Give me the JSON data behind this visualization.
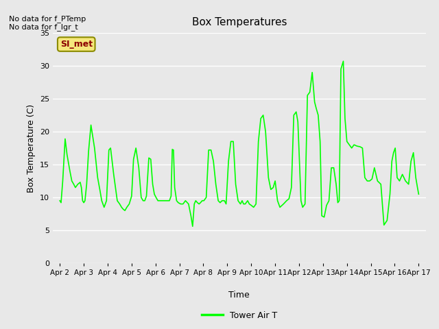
{
  "title": "Box Temperatures",
  "ylabel": "Box Temperature (C)",
  "xlabel": "Time",
  "no_data_text1": "No data for f_PTemp",
  "no_data_text2": "No data for f_lgr_t",
  "si_met_label": "SI_met",
  "legend_label": "Tower Air T",
  "line_color": "#00FF00",
  "fig_bg": "#E8E8E8",
  "plot_bg": "#E8E8E8",
  "ylim": [
    0,
    35
  ],
  "yticks": [
    0,
    5,
    10,
    15,
    20,
    25,
    30,
    35
  ],
  "x_labels": [
    "Apr 2",
    "Apr 3",
    "Apr 4",
    "Apr 5",
    "Apr 6",
    "Apr 7",
    "Apr 8",
    "Apr 9",
    "Apr 10",
    "Apr 11",
    "Apr 12",
    "Apr 13",
    "Apr 14",
    "Apr 15",
    "Apr 16",
    "Apr 17"
  ],
  "x_positions": [
    0,
    1,
    2,
    3,
    4,
    5,
    6,
    7,
    8,
    9,
    10,
    11,
    12,
    13,
    14,
    15
  ],
  "time_data": [
    0.0,
    0.05,
    0.12,
    0.22,
    0.3,
    0.42,
    0.5,
    0.58,
    0.65,
    0.75,
    0.85,
    0.9,
    0.95,
    1.0,
    1.05,
    1.12,
    1.2,
    1.3,
    1.45,
    1.58,
    1.68,
    1.75,
    1.8,
    1.85,
    1.9,
    1.95,
    2.05,
    2.12,
    2.25,
    2.4,
    2.5,
    2.58,
    2.65,
    2.72,
    2.8,
    2.9,
    3.0,
    3.08,
    3.18,
    3.3,
    3.4,
    3.48,
    3.55,
    3.62,
    3.72,
    3.8,
    3.88,
    3.95,
    4.02,
    4.1,
    4.18,
    4.28,
    4.38,
    4.48,
    4.58,
    4.65,
    4.7,
    4.75,
    4.8,
    4.88,
    4.95,
    5.05,
    5.15,
    5.25,
    5.38,
    5.48,
    5.55,
    5.62,
    5.68,
    5.75,
    5.82,
    5.88,
    5.95,
    6.02,
    6.12,
    6.22,
    6.32,
    6.42,
    6.52,
    6.62,
    6.7,
    6.78,
    6.88,
    6.95,
    7.05,
    7.15,
    7.25,
    7.35,
    7.45,
    7.55,
    7.62,
    7.68,
    7.75,
    7.85,
    7.92,
    8.0,
    8.1,
    8.2,
    8.3,
    8.4,
    8.5,
    8.6,
    8.72,
    8.82,
    8.92,
    9.0,
    9.1,
    9.2,
    9.35,
    9.48,
    9.58,
    9.68,
    9.78,
    9.88,
    9.95,
    10.0,
    10.08,
    10.15,
    10.25,
    10.35,
    10.45,
    10.55,
    10.65,
    10.72,
    10.8,
    10.88,
    10.95,
    11.05,
    11.15,
    11.25,
    11.35,
    11.45,
    11.55,
    11.62,
    11.68,
    11.75,
    11.85,
    11.92,
    12.0,
    12.1,
    12.2,
    12.3,
    12.42,
    12.55,
    12.65,
    12.75,
    12.85,
    12.95,
    13.05,
    13.15,
    13.28,
    13.42,
    13.55,
    13.68,
    13.8,
    13.88,
    13.95,
    14.02,
    14.1,
    14.2,
    14.32,
    14.45,
    14.58,
    14.68,
    14.78,
    14.88,
    14.95,
    15.0
  ],
  "temp_data": [
    9.5,
    9.2,
    12.5,
    18.9,
    16.5,
    14.0,
    12.5,
    12.0,
    11.5,
    12.0,
    12.3,
    11.5,
    9.5,
    9.2,
    9.5,
    12.0,
    17.0,
    21.0,
    17.5,
    13.0,
    11.0,
    9.5,
    9.0,
    8.5,
    9.0,
    9.5,
    17.2,
    17.5,
    13.5,
    9.5,
    9.0,
    8.5,
    8.2,
    8.0,
    8.5,
    9.0,
    10.2,
    15.8,
    17.5,
    14.5,
    10.0,
    9.5,
    9.5,
    10.2,
    16.0,
    15.8,
    12.0,
    10.5,
    10.0,
    9.5,
    9.5,
    9.5,
    9.5,
    9.5,
    9.5,
    10.2,
    17.3,
    17.2,
    11.5,
    9.5,
    9.2,
    9.0,
    9.0,
    9.5,
    9.0,
    7.2,
    5.6,
    9.0,
    9.5,
    9.2,
    9.0,
    9.2,
    9.5,
    9.5,
    10.0,
    17.2,
    17.2,
    15.5,
    12.0,
    9.5,
    9.2,
    9.5,
    9.5,
    9.0,
    15.5,
    18.5,
    18.5,
    12.0,
    9.5,
    9.0,
    9.5,
    9.0,
    9.0,
    9.5,
    9.0,
    8.8,
    8.5,
    9.0,
    18.5,
    22.0,
    22.5,
    20.0,
    13.0,
    11.2,
    11.5,
    12.5,
    9.5,
    8.5,
    9.0,
    9.5,
    9.8,
    11.5,
    22.5,
    23.0,
    21.5,
    17.0,
    9.5,
    8.5,
    9.0,
    25.5,
    26.0,
    29.0,
    24.5,
    23.5,
    22.5,
    18.5,
    7.2,
    7.0,
    8.8,
    9.5,
    14.5,
    14.5,
    12.0,
    9.2,
    9.5,
    29.5,
    30.7,
    22.0,
    18.5,
    18.0,
    17.5,
    18.0,
    17.8,
    17.7,
    17.5,
    13.0,
    12.5,
    12.5,
    12.8,
    14.5,
    12.5,
    12.0,
    5.8,
    6.5,
    10.5,
    15.5,
    16.8,
    17.5,
    13.0,
    12.5,
    13.5,
    12.5,
    12.0,
    15.5,
    16.8,
    13.0,
    11.5,
    10.5
  ]
}
